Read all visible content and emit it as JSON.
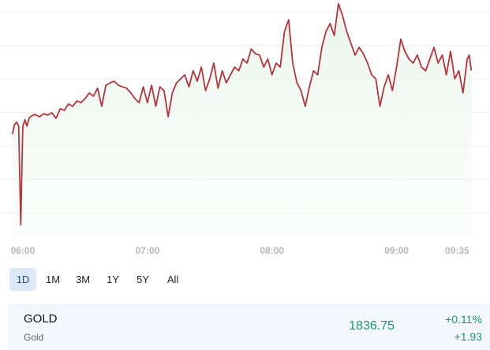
{
  "chart_data": {
    "type": "line",
    "x": [
      "05:55",
      "05:56",
      "05:57",
      "05:58",
      "05:59",
      "06:00",
      "06:01",
      "06:02",
      "06:03",
      "06:04",
      "06:06",
      "06:08",
      "06:10",
      "06:12",
      "06:14",
      "06:16",
      "06:18",
      "06:20",
      "06:22",
      "06:24",
      "06:26",
      "06:28",
      "06:30",
      "06:32",
      "06:34",
      "06:36",
      "06:38",
      "06:40",
      "06:42",
      "06:44",
      "06:46",
      "06:48",
      "06:50",
      "06:52",
      "06:54",
      "06:56",
      "06:58",
      "07:00",
      "07:02",
      "07:04",
      "07:06",
      "07:08",
      "07:10",
      "07:12",
      "07:14",
      "07:16",
      "07:18",
      "07:20",
      "07:22",
      "07:24",
      "07:26",
      "07:28",
      "07:30",
      "07:32",
      "07:34",
      "07:36",
      "07:38",
      "07:40",
      "07:42",
      "07:44",
      "07:46",
      "07:48",
      "07:50",
      "07:52",
      "07:54",
      "07:56",
      "07:58",
      "08:00",
      "08:02",
      "08:04",
      "08:06",
      "08:08",
      "08:10",
      "08:12",
      "08:14",
      "08:16",
      "08:18",
      "08:20",
      "08:22",
      "08:24",
      "08:26",
      "08:28",
      "08:30",
      "08:32",
      "08:34",
      "08:36",
      "08:38",
      "08:40",
      "08:42",
      "08:44",
      "08:46",
      "08:48",
      "08:50",
      "08:52",
      "08:54",
      "08:56",
      "08:58",
      "09:00",
      "09:02",
      "09:04",
      "09:06",
      "09:08",
      "09:10",
      "09:12",
      "09:14",
      "09:16",
      "09:18",
      "09:20",
      "09:22",
      "09:24",
      "09:26",
      "09:28",
      "09:30",
      "09:32",
      "09:34",
      "09:35",
      "09:36"
    ],
    "values": [
      1834.85,
      1835.14,
      1835.21,
      1835.09,
      1832.15,
      1835.09,
      1835.28,
      1835.09,
      1835.32,
      1835.39,
      1835.44,
      1835.37,
      1835.46,
      1835.42,
      1835.49,
      1835.32,
      1835.61,
      1835.56,
      1835.75,
      1835.68,
      1835.84,
      1835.79,
      1835.91,
      1836.08,
      1835.98,
      1836.22,
      1835.68,
      1836.31,
      1836.38,
      1836.43,
      1836.31,
      1836.26,
      1836.22,
      1836.08,
      1835.91,
      1835.79,
      1836.26,
      1835.79,
      1836.31,
      1835.68,
      1836.26,
      1836.15,
      1835.37,
      1836.08,
      1836.38,
      1836.5,
      1836.62,
      1836.26,
      1836.74,
      1836.43,
      1836.85,
      1836.15,
      1836.5,
      1836.97,
      1836.22,
      1836.74,
      1836.38,
      1836.62,
      1836.85,
      1836.74,
      1837.09,
      1836.97,
      1837.39,
      1837.25,
      1837.21,
      1836.85,
      1837.09,
      1836.62,
      1836.97,
      1836.85,
      1837.91,
      1838.26,
      1836.97,
      1836.38,
      1836.15,
      1835.68,
      1836.26,
      1836.74,
      1836.62,
      1837.44,
      1837.91,
      1838.15,
      1837.79,
      1838.74,
      1838.38,
      1837.91,
      1837.56,
      1837.21,
      1837.44,
      1837.25,
      1836.97,
      1836.62,
      1836.5,
      1835.68,
      1836.26,
      1836.62,
      1836.15,
      1836.85,
      1837.68,
      1837.32,
      1837.09,
      1836.97,
      1837.21,
      1836.85,
      1836.74,
      1837.09,
      1837.44,
      1836.97,
      1837.21,
      1836.62,
      1837.32,
      1836.5,
      1836.74,
      1836.08,
      1837.09,
      1837.21,
      1836.75
    ],
    "color": "#b8333a",
    "xlim": [
      "05:49",
      "09:45"
    ],
    "xticks": [
      "06:00",
      "07:00",
      "08:00",
      "09:00",
      "09:35"
    ],
    "ylim": [
      1831.8,
      1838.85
    ],
    "yticks": [
      1832.5,
      1833.5,
      1834.5,
      1835.5,
      1836.5,
      1837.5,
      1838.5
    ],
    "show_ytick_labels": false,
    "grid": true
  },
  "ranges": [
    "1D",
    "1M",
    "3M",
    "1Y",
    "5Y",
    "All"
  ],
  "selected_range": "1D",
  "quote": {
    "symbol": "GOLD",
    "name": "Gold",
    "price": "1836.75",
    "change_pct": "+0.11%",
    "change": "+1.93"
  }
}
